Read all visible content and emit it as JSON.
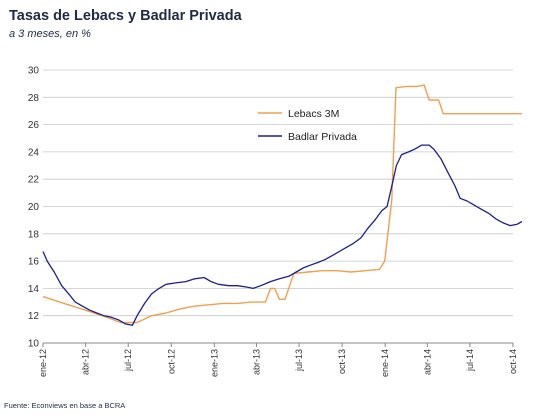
{
  "chart_data": {
    "type": "line",
    "title": "Tasas de Lebacs y Badlar Privada",
    "subtitle": "a 3 meses, en %",
    "source": "Fuente: Econviews en base a BCRA",
    "xlabel": "",
    "ylabel": "",
    "ylim": [
      10,
      30
    ],
    "yticks": [
      10,
      12,
      14,
      16,
      18,
      20,
      22,
      24,
      26,
      28,
      30
    ],
    "xlim": [
      "2012-01",
      "2014-10"
    ],
    "xticks": [
      {
        "label": "ene-12",
        "date": "2012-01"
      },
      {
        "label": "abr-12",
        "date": "2012-04"
      },
      {
        "label": "jul-12",
        "date": "2012-07"
      },
      {
        "label": "oct-12",
        "date": "2012-10"
      },
      {
        "label": "ene-13",
        "date": "2013-01"
      },
      {
        "label": "abr-13",
        "date": "2013-04"
      },
      {
        "label": "jul-13",
        "date": "2013-07"
      },
      {
        "label": "oct-13",
        "date": "2013-10"
      },
      {
        "label": "ene-14",
        "date": "2014-01"
      },
      {
        "label": "abr-14",
        "date": "2014-04"
      },
      {
        "label": "jul-14",
        "date": "2014-07"
      },
      {
        "label": "oct-14",
        "date": "2014-10"
      }
    ],
    "grid": "horizontal",
    "legend_position": "top-right",
    "series": [
      {
        "name": "Lebacs 3M",
        "color": "#f0a050",
        "points": [
          [
            "2012-01-01",
            13.4
          ],
          [
            "2012-02-15",
            12.9
          ],
          [
            "2012-04-01",
            12.4
          ],
          [
            "2012-05-15",
            11.9
          ],
          [
            "2012-06-15",
            11.5
          ],
          [
            "2012-07-20",
            11.5
          ],
          [
            "2012-08-20",
            12.0
          ],
          [
            "2012-09-20",
            12.2
          ],
          [
            "2012-10-20",
            12.5
          ],
          [
            "2012-11-20",
            12.7
          ],
          [
            "2012-12-20",
            12.8
          ],
          [
            "2013-01-20",
            12.9
          ],
          [
            "2013-02-20",
            12.9
          ],
          [
            "2013-03-20",
            13.0
          ],
          [
            "2013-04-20",
            13.0
          ],
          [
            "2013-05-01",
            14.0
          ],
          [
            "2013-05-10",
            14.0
          ],
          [
            "2013-05-20",
            13.2
          ],
          [
            "2013-06-01",
            13.2
          ],
          [
            "2013-06-20",
            15.1
          ],
          [
            "2013-07-20",
            15.2
          ],
          [
            "2013-08-20",
            15.3
          ],
          [
            "2013-09-20",
            15.3
          ],
          [
            "2013-10-20",
            15.2
          ],
          [
            "2013-11-20",
            15.3
          ],
          [
            "2013-12-20",
            15.4
          ],
          [
            "2013-12-31",
            16.0
          ],
          [
            "2014-01-15",
            20.5
          ],
          [
            "2014-01-24",
            28.7
          ],
          [
            "2014-02-15",
            28.8
          ],
          [
            "2014-03-10",
            28.8
          ],
          [
            "2014-03-25",
            28.9
          ],
          [
            "2014-04-05",
            27.8
          ],
          [
            "2014-04-25",
            27.8
          ],
          [
            "2014-05-05",
            26.8
          ],
          [
            "2014-06-01",
            26.8
          ],
          [
            "2014-07-01",
            26.8
          ],
          [
            "2014-08-01",
            26.8
          ],
          [
            "2014-09-01",
            26.8
          ],
          [
            "2014-10-20",
            26.8
          ]
        ]
      },
      {
        "name": "Badlar Privada",
        "color": "#1c1f8c",
        "points": [
          [
            "2012-01-01",
            16.7
          ],
          [
            "2012-01-10",
            16.0
          ],
          [
            "2012-01-25",
            15.2
          ],
          [
            "2012-02-10",
            14.2
          ],
          [
            "2012-02-25",
            13.6
          ],
          [
            "2012-03-10",
            13.0
          ],
          [
            "2012-03-25",
            12.7
          ],
          [
            "2012-04-10",
            12.4
          ],
          [
            "2012-04-25",
            12.2
          ],
          [
            "2012-05-10",
            12.0
          ],
          [
            "2012-05-25",
            11.9
          ],
          [
            "2012-06-10",
            11.7
          ],
          [
            "2012-06-25",
            11.4
          ],
          [
            "2012-07-10",
            11.3
          ],
          [
            "2012-07-20",
            12.0
          ],
          [
            "2012-08-05",
            12.9
          ],
          [
            "2012-08-20",
            13.6
          ],
          [
            "2012-09-05",
            14.0
          ],
          [
            "2012-09-20",
            14.3
          ],
          [
            "2012-10-10",
            14.4
          ],
          [
            "2012-11-01",
            14.5
          ],
          [
            "2012-11-20",
            14.7
          ],
          [
            "2012-12-10",
            14.8
          ],
          [
            "2012-12-25",
            14.5
          ],
          [
            "2013-01-10",
            14.3
          ],
          [
            "2013-02-01",
            14.2
          ],
          [
            "2013-02-20",
            14.2
          ],
          [
            "2013-03-10",
            14.1
          ],
          [
            "2013-03-25",
            14.0
          ],
          [
            "2013-04-10",
            14.2
          ],
          [
            "2013-05-01",
            14.5
          ],
          [
            "2013-05-20",
            14.7
          ],
          [
            "2013-06-10",
            14.9
          ],
          [
            "2013-06-25",
            15.2
          ],
          [
            "2013-07-10",
            15.5
          ],
          [
            "2013-07-25",
            15.7
          ],
          [
            "2013-08-10",
            15.9
          ],
          [
            "2013-08-25",
            16.1
          ],
          [
            "2013-09-10",
            16.4
          ],
          [
            "2013-09-25",
            16.7
          ],
          [
            "2013-10-10",
            17.0
          ],
          [
            "2013-10-25",
            17.3
          ],
          [
            "2013-11-10",
            17.7
          ],
          [
            "2013-11-25",
            18.4
          ],
          [
            "2013-12-10",
            19.0
          ],
          [
            "2013-12-25",
            19.7
          ],
          [
            "2014-01-05",
            20.0
          ],
          [
            "2014-01-15",
            21.5
          ],
          [
            "2014-01-25",
            23.0
          ],
          [
            "2014-02-05",
            23.8
          ],
          [
            "2014-02-20",
            24.0
          ],
          [
            "2014-03-05",
            24.2
          ],
          [
            "2014-03-20",
            24.5
          ],
          [
            "2014-04-05",
            24.5
          ],
          [
            "2014-04-15",
            24.2
          ],
          [
            "2014-04-30",
            23.5
          ],
          [
            "2014-05-15",
            22.5
          ],
          [
            "2014-05-30",
            21.5
          ],
          [
            "2014-06-10",
            20.6
          ],
          [
            "2014-06-25",
            20.4
          ],
          [
            "2014-07-10",
            20.1
          ],
          [
            "2014-07-25",
            19.8
          ],
          [
            "2014-08-10",
            19.5
          ],
          [
            "2014-08-25",
            19.1
          ],
          [
            "2014-09-10",
            18.8
          ],
          [
            "2014-09-25",
            18.6
          ],
          [
            "2014-10-10",
            18.7
          ],
          [
            "2014-10-20",
            18.9
          ]
        ]
      }
    ]
  }
}
